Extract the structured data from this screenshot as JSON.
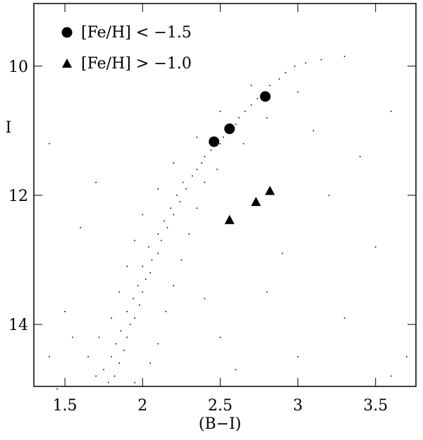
{
  "chart_data": {
    "type": "scatter",
    "xlabel": "(B−I)",
    "ylabel": "I",
    "xlim": [
      1.3,
      3.76
    ],
    "ylim": [
      9.03,
      14.96
    ],
    "y_inverted": true,
    "xticks": [
      1.5,
      2,
      2.5,
      3,
      3.5
    ],
    "yticks": [
      10,
      12,
      14
    ],
    "background": {
      "color": "#000000",
      "x": [
        1.78,
        1.82,
        1.75,
        1.85,
        1.8,
        1.88,
        1.83,
        1.9,
        1.86,
        1.92,
        1.95,
        1.9,
        1.98,
        1.94,
        2.0,
        1.97,
        2.02,
        2.05,
        2.0,
        2.06,
        2.1,
        2.04,
        2.12,
        2.1,
        2.16,
        2.14,
        2.2,
        2.18,
        2.24,
        2.22,
        2.28,
        2.26,
        2.32,
        2.35,
        2.38,
        2.4,
        2.44,
        2.5,
        2.52,
        2.55,
        2.6,
        2.62,
        2.66,
        2.7,
        2.74,
        2.78,
        2.82,
        2.88,
        2.92,
        2.98,
        3.05,
        3.15,
        3.3,
        1.7,
        1.95,
        1.65,
        2.05,
        1.72,
        2.1,
        1.8,
        2.15,
        1.85,
        2.2,
        1.9,
        2.25,
        1.95,
        2.3,
        2.0,
        2.35,
        2.1,
        2.4,
        2.2,
        2.48,
        2.35,
        2.65,
        2.5,
        2.8,
        2.7,
        3.0,
        1.4,
        1.5,
        1.45,
        2.5,
        2.8,
        3.0,
        3.3,
        3.6,
        3.7,
        3.5,
        3.2,
        2.9,
        1.6,
        1.7,
        1.4,
        3.4,
        3.6,
        3.1,
        2.4,
        2.6,
        1.55
      ],
      "y": [
        14.9,
        14.8,
        14.7,
        14.6,
        14.5,
        14.4,
        14.3,
        14.2,
        14.1,
        14.0,
        13.9,
        13.8,
        13.7,
        13.6,
        13.5,
        13.4,
        13.3,
        13.2,
        13.1,
        13.0,
        12.9,
        12.8,
        12.7,
        12.6,
        12.5,
        12.4,
        12.3,
        12.2,
        12.1,
        12.0,
        11.9,
        11.8,
        11.7,
        11.6,
        11.5,
        11.4,
        11.3,
        11.2,
        11.1,
        11.0,
        10.9,
        10.8,
        10.7,
        10.6,
        10.5,
        10.4,
        10.3,
        10.2,
        10.1,
        10.0,
        9.95,
        9.9,
        9.85,
        14.8,
        14.9,
        14.5,
        14.6,
        14.2,
        14.3,
        13.9,
        13.8,
        13.5,
        13.4,
        13.1,
        13.0,
        12.7,
        12.6,
        12.3,
        12.2,
        11.9,
        11.8,
        11.5,
        11.6,
        11.1,
        11.2,
        10.7,
        10.8,
        10.3,
        10.4,
        14.5,
        13.8,
        15.0,
        14.2,
        13.5,
        14.5,
        13.9,
        14.8,
        14.5,
        12.8,
        12.0,
        12.9,
        12.5,
        11.8,
        11.2,
        11.4,
        10.7,
        11.0,
        13.6,
        14.7,
        14.2
      ]
    },
    "series": [
      {
        "name": "[Fe/H] < −1.5",
        "marker": "circle",
        "color": "#000000",
        "x": [
          2.46,
          2.56,
          2.79
        ],
        "values": [
          11.17,
          10.97,
          10.47
        ]
      },
      {
        "name": "[Fe/H] > −1.0",
        "marker": "triangle",
        "color": "#000000",
        "x": [
          2.56,
          2.73,
          2.82
        ],
        "values": [
          12.38,
          12.1,
          11.93
        ]
      }
    ]
  }
}
